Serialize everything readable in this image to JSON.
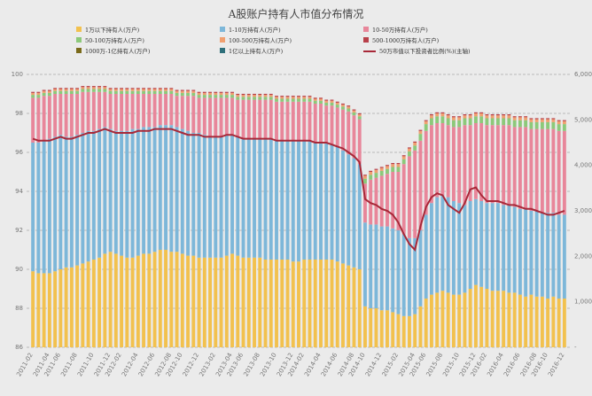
{
  "chart_data": {
    "type": "bar",
    "title": "A股账户持有人市值分布情况",
    "xlabel": "",
    "ylabel": "",
    "y_left_lim": [
      86,
      100
    ],
    "y_left_ticks": [
      86,
      88,
      90,
      92,
      94,
      96,
      98,
      100
    ],
    "y_right_lim": [
      0,
      6000
    ],
    "y_right_ticks": [
      "-",
      "1,000",
      "2,000",
      "3,000",
      "4,000",
      "5,000",
      "6,000"
    ],
    "grid": "dashed horizontal",
    "legend_position": "top",
    "x_tick_labels": [
      "2011-02",
      "2011-04",
      "2011-06",
      "2011-08",
      "2011-10",
      "2011-12",
      "2012-02",
      "2012-04",
      "2012-06",
      "2012-08",
      "2012-10",
      "2012-12",
      "2013-02",
      "2013-04",
      "2013-06",
      "2013-08",
      "2013-10",
      "2013-12",
      "2014-02",
      "2014-04",
      "2014-06",
      "2014-08",
      "2014-10",
      "2014-12",
      "2015-02",
      "2015-04",
      "2015-06",
      "2015-08",
      "2015-10",
      "2015-12",
      "2016-02",
      "2016-04",
      "2016-06",
      "2016-08",
      "2016-10",
      "2016-12"
    ],
    "series": [
      {
        "name": "1万以下持有人(万户)",
        "color": "#f2c14e",
        "axis": "left",
        "kind": "bar"
      },
      {
        "name": "1-10万持有人(万户)",
        "color": "#7db7d9",
        "axis": "left",
        "kind": "bar"
      },
      {
        "name": "10-50万持有人(万户)",
        "color": "#e8869a",
        "axis": "left",
        "kind": "bar"
      },
      {
        "name": "50-100万持有人(万户)",
        "color": "#8cc97a",
        "axis": "left",
        "kind": "bar"
      },
      {
        "name": "100-500万持有人(万户)",
        "color": "#f0a070",
        "axis": "left",
        "kind": "bar"
      },
      {
        "name": "500-1000万持有人(万户)",
        "color": "#b8404a",
        "axis": "left",
        "kind": "bar"
      },
      {
        "name": "1000万-1亿持有人(万户)",
        "color": "#7a6a1a",
        "axis": "left",
        "kind": "bar"
      },
      {
        "name": "1亿以上持有人(万户)",
        "color": "#2e6f7a",
        "axis": "left",
        "kind": "bar"
      },
      {
        "name": "50万市值以下投资者比例(%)(主轴)",
        "color": "#a82838",
        "axis": "left",
        "kind": "line"
      }
    ],
    "stack_tops": {
      "t1": [
        89.9,
        89.8,
        89.8,
        89.8,
        89.9,
        90.0,
        90.1,
        90.1,
        90.2,
        90.3,
        90.4,
        90.5,
        90.6,
        90.8,
        90.9,
        90.8,
        90.7,
        90.6,
        90.6,
        90.7,
        90.8,
        90.8,
        90.9,
        91.0,
        91.0,
        90.9,
        90.9,
        90.8,
        90.7,
        90.7,
        90.6,
        90.6,
        90.6,
        90.6,
        90.6,
        90.7,
        90.8,
        90.7,
        90.6,
        90.6,
        90.6,
        90.6,
        90.5,
        90.5,
        90.5,
        90.5,
        90.5,
        90.4,
        90.4,
        90.5,
        90.5,
        90.5,
        90.5,
        90.5,
        90.5,
        90.4,
        90.3,
        90.2,
        90.1,
        90.0,
        88.1,
        88.0,
        88.0,
        87.9,
        87.9,
        87.8,
        87.7,
        87.6,
        87.6,
        87.7,
        88.1,
        88.5,
        88.7,
        88.8,
        88.9,
        88.8,
        88.7,
        88.7,
        88.8,
        89.0,
        89.2,
        89.1,
        89.0,
        88.9,
        88.9,
        88.9,
        88.8,
        88.8,
        88.7,
        88.6,
        88.7,
        88.6,
        88.6,
        88.5,
        88.6,
        88.5,
        88.5
      ],
      "t2": [
        96.5,
        96.5,
        96.6,
        96.7,
        96.8,
        96.9,
        96.8,
        96.8,
        96.9,
        97.0,
        97.1,
        97.1,
        97.2,
        97.3,
        97.2,
        97.1,
        97.1,
        97.1,
        97.2,
        97.2,
        97.3,
        97.3,
        97.3,
        97.4,
        97.4,
        97.4,
        97.3,
        97.2,
        97.1,
        97.0,
        97.0,
        96.9,
        96.8,
        96.8,
        96.8,
        96.9,
        96.9,
        96.8,
        96.7,
        96.7,
        96.7,
        96.7,
        96.7,
        96.7,
        96.6,
        96.6,
        96.6,
        96.6,
        96.6,
        96.6,
        96.6,
        96.5,
        96.5,
        96.5,
        96.4,
        96.3,
        96.1,
        95.9,
        95.7,
        95.4,
        92.4,
        92.3,
        92.3,
        92.2,
        92.2,
        92.1,
        92.0,
        91.8,
        91.6,
        91.6,
        92.0,
        92.8,
        93.4,
        93.7,
        93.8,
        93.7,
        93.5,
        93.4,
        93.3,
        93.5,
        93.6,
        93.5,
        93.4,
        93.4,
        93.4,
        93.3,
        93.3,
        93.2,
        93.1,
        93.1,
        93.0,
        93.0,
        92.9,
        92.9,
        92.9,
        92.8,
        92.8
      ],
      "t3": [
        98.8,
        98.8,
        98.9,
        98.9,
        99.0,
        99.0,
        99.0,
        99.0,
        99.0,
        99.1,
        99.1,
        99.1,
        99.1,
        99.1,
        99.0,
        99.0,
        99.0,
        99.0,
        99.0,
        99.0,
        99.0,
        99.0,
        99.0,
        99.0,
        99.0,
        99.0,
        98.9,
        98.9,
        98.9,
        98.9,
        98.8,
        98.8,
        98.8,
        98.8,
        98.8,
        98.8,
        98.8,
        98.7,
        98.7,
        98.7,
        98.7,
        98.7,
        98.7,
        98.7,
        98.6,
        98.6,
        98.6,
        98.6,
        98.6,
        98.6,
        98.6,
        98.5,
        98.5,
        98.4,
        98.4,
        98.3,
        98.2,
        98.1,
        97.9,
        97.7,
        94.4,
        94.6,
        94.7,
        94.8,
        94.9,
        95.0,
        95.0,
        95.4,
        95.8,
        96.1,
        96.6,
        97.1,
        97.4,
        97.5,
        97.5,
        97.4,
        97.3,
        97.3,
        97.4,
        97.4,
        97.5,
        97.5,
        97.4,
        97.4,
        97.4,
        97.4,
        97.4,
        97.3,
        97.3,
        97.3,
        97.2,
        97.2,
        97.2,
        97.2,
        97.2,
        97.1,
        97.1
      ],
      "t4": [
        98.95,
        98.95,
        99.05,
        99.05,
        99.15,
        99.15,
        99.15,
        99.15,
        99.15,
        99.25,
        99.25,
        99.25,
        99.25,
        99.25,
        99.15,
        99.15,
        99.15,
        99.15,
        99.15,
        99.15,
        99.15,
        99.15,
        99.15,
        99.15,
        99.15,
        99.15,
        99.05,
        99.05,
        99.05,
        99.05,
        98.95,
        98.95,
        98.95,
        98.95,
        98.95,
        98.95,
        98.95,
        98.85,
        98.85,
        98.85,
        98.85,
        98.85,
        98.85,
        98.85,
        98.75,
        98.75,
        98.75,
        98.75,
        98.75,
        98.75,
        98.75,
        98.65,
        98.65,
        98.55,
        98.55,
        98.45,
        98.35,
        98.25,
        98.05,
        97.85,
        94.65,
        94.85,
        94.95,
        95.05,
        95.15,
        95.25,
        95.25,
        95.65,
        96.05,
        96.35,
        96.95,
        97.45,
        97.75,
        97.85,
        97.85,
        97.75,
        97.65,
        97.65,
        97.75,
        97.75,
        97.85,
        97.85,
        97.75,
        97.75,
        97.75,
        97.75,
        97.75,
        97.65,
        97.65,
        97.65,
        97.55,
        97.55,
        97.55,
        97.55,
        97.55,
        97.45,
        97.45
      ],
      "t5": [
        99.05,
        99.05,
        99.15,
        99.15,
        99.25,
        99.25,
        99.25,
        99.25,
        99.25,
        99.35,
        99.35,
        99.35,
        99.35,
        99.35,
        99.25,
        99.25,
        99.25,
        99.25,
        99.25,
        99.25,
        99.25,
        99.25,
        99.25,
        99.25,
        99.25,
        99.25,
        99.15,
        99.15,
        99.15,
        99.15,
        99.05,
        99.05,
        99.05,
        99.05,
        99.05,
        99.05,
        99.05,
        98.95,
        98.95,
        98.95,
        98.95,
        98.95,
        98.95,
        98.95,
        98.85,
        98.85,
        98.85,
        98.85,
        98.85,
        98.85,
        98.85,
        98.75,
        98.75,
        98.65,
        98.65,
        98.55,
        98.45,
        98.35,
        98.15,
        97.95,
        94.8,
        95.0,
        95.1,
        95.2,
        95.3,
        95.4,
        95.4,
        95.8,
        96.2,
        96.5,
        97.1,
        97.6,
        97.9,
        98.0,
        98.0,
        97.9,
        97.8,
        97.8,
        97.9,
        97.9,
        98.0,
        98.0,
        97.9,
        97.9,
        97.9,
        97.9,
        97.9,
        97.8,
        97.8,
        97.8,
        97.7,
        97.7,
        97.7,
        97.7,
        97.7,
        97.6,
        97.6
      ]
    },
    "line_values": [
      96.7,
      96.6,
      96.6,
      96.6,
      96.7,
      96.8,
      96.7,
      96.7,
      96.8,
      96.9,
      97.0,
      97.0,
      97.1,
      97.2,
      97.1,
      97.0,
      97.0,
      97.0,
      97.0,
      97.1,
      97.1,
      97.1,
      97.2,
      97.2,
      97.2,
      97.2,
      97.1,
      97.0,
      96.9,
      96.9,
      96.9,
      96.8,
      96.8,
      96.8,
      96.8,
      96.9,
      96.9,
      96.8,
      96.7,
      96.7,
      96.7,
      96.7,
      96.7,
      96.7,
      96.6,
      96.6,
      96.6,
      96.6,
      96.6,
      96.6,
      96.6,
      96.5,
      96.5,
      96.5,
      96.4,
      96.3,
      96.2,
      96.0,
      95.8,
      95.5,
      93.6,
      93.4,
      93.3,
      93.1,
      93.0,
      92.8,
      92.4,
      91.8,
      91.3,
      91.0,
      92.2,
      93.2,
      93.7,
      93.9,
      93.8,
      93.3,
      93.1,
      92.9,
      93.4,
      94.1,
      94.2,
      93.8,
      93.5,
      93.5,
      93.5,
      93.4,
      93.3,
      93.3,
      93.2,
      93.1,
      93.1,
      93.0,
      92.9,
      92.8,
      92.8,
      92.9,
      93.0
    ]
  }
}
